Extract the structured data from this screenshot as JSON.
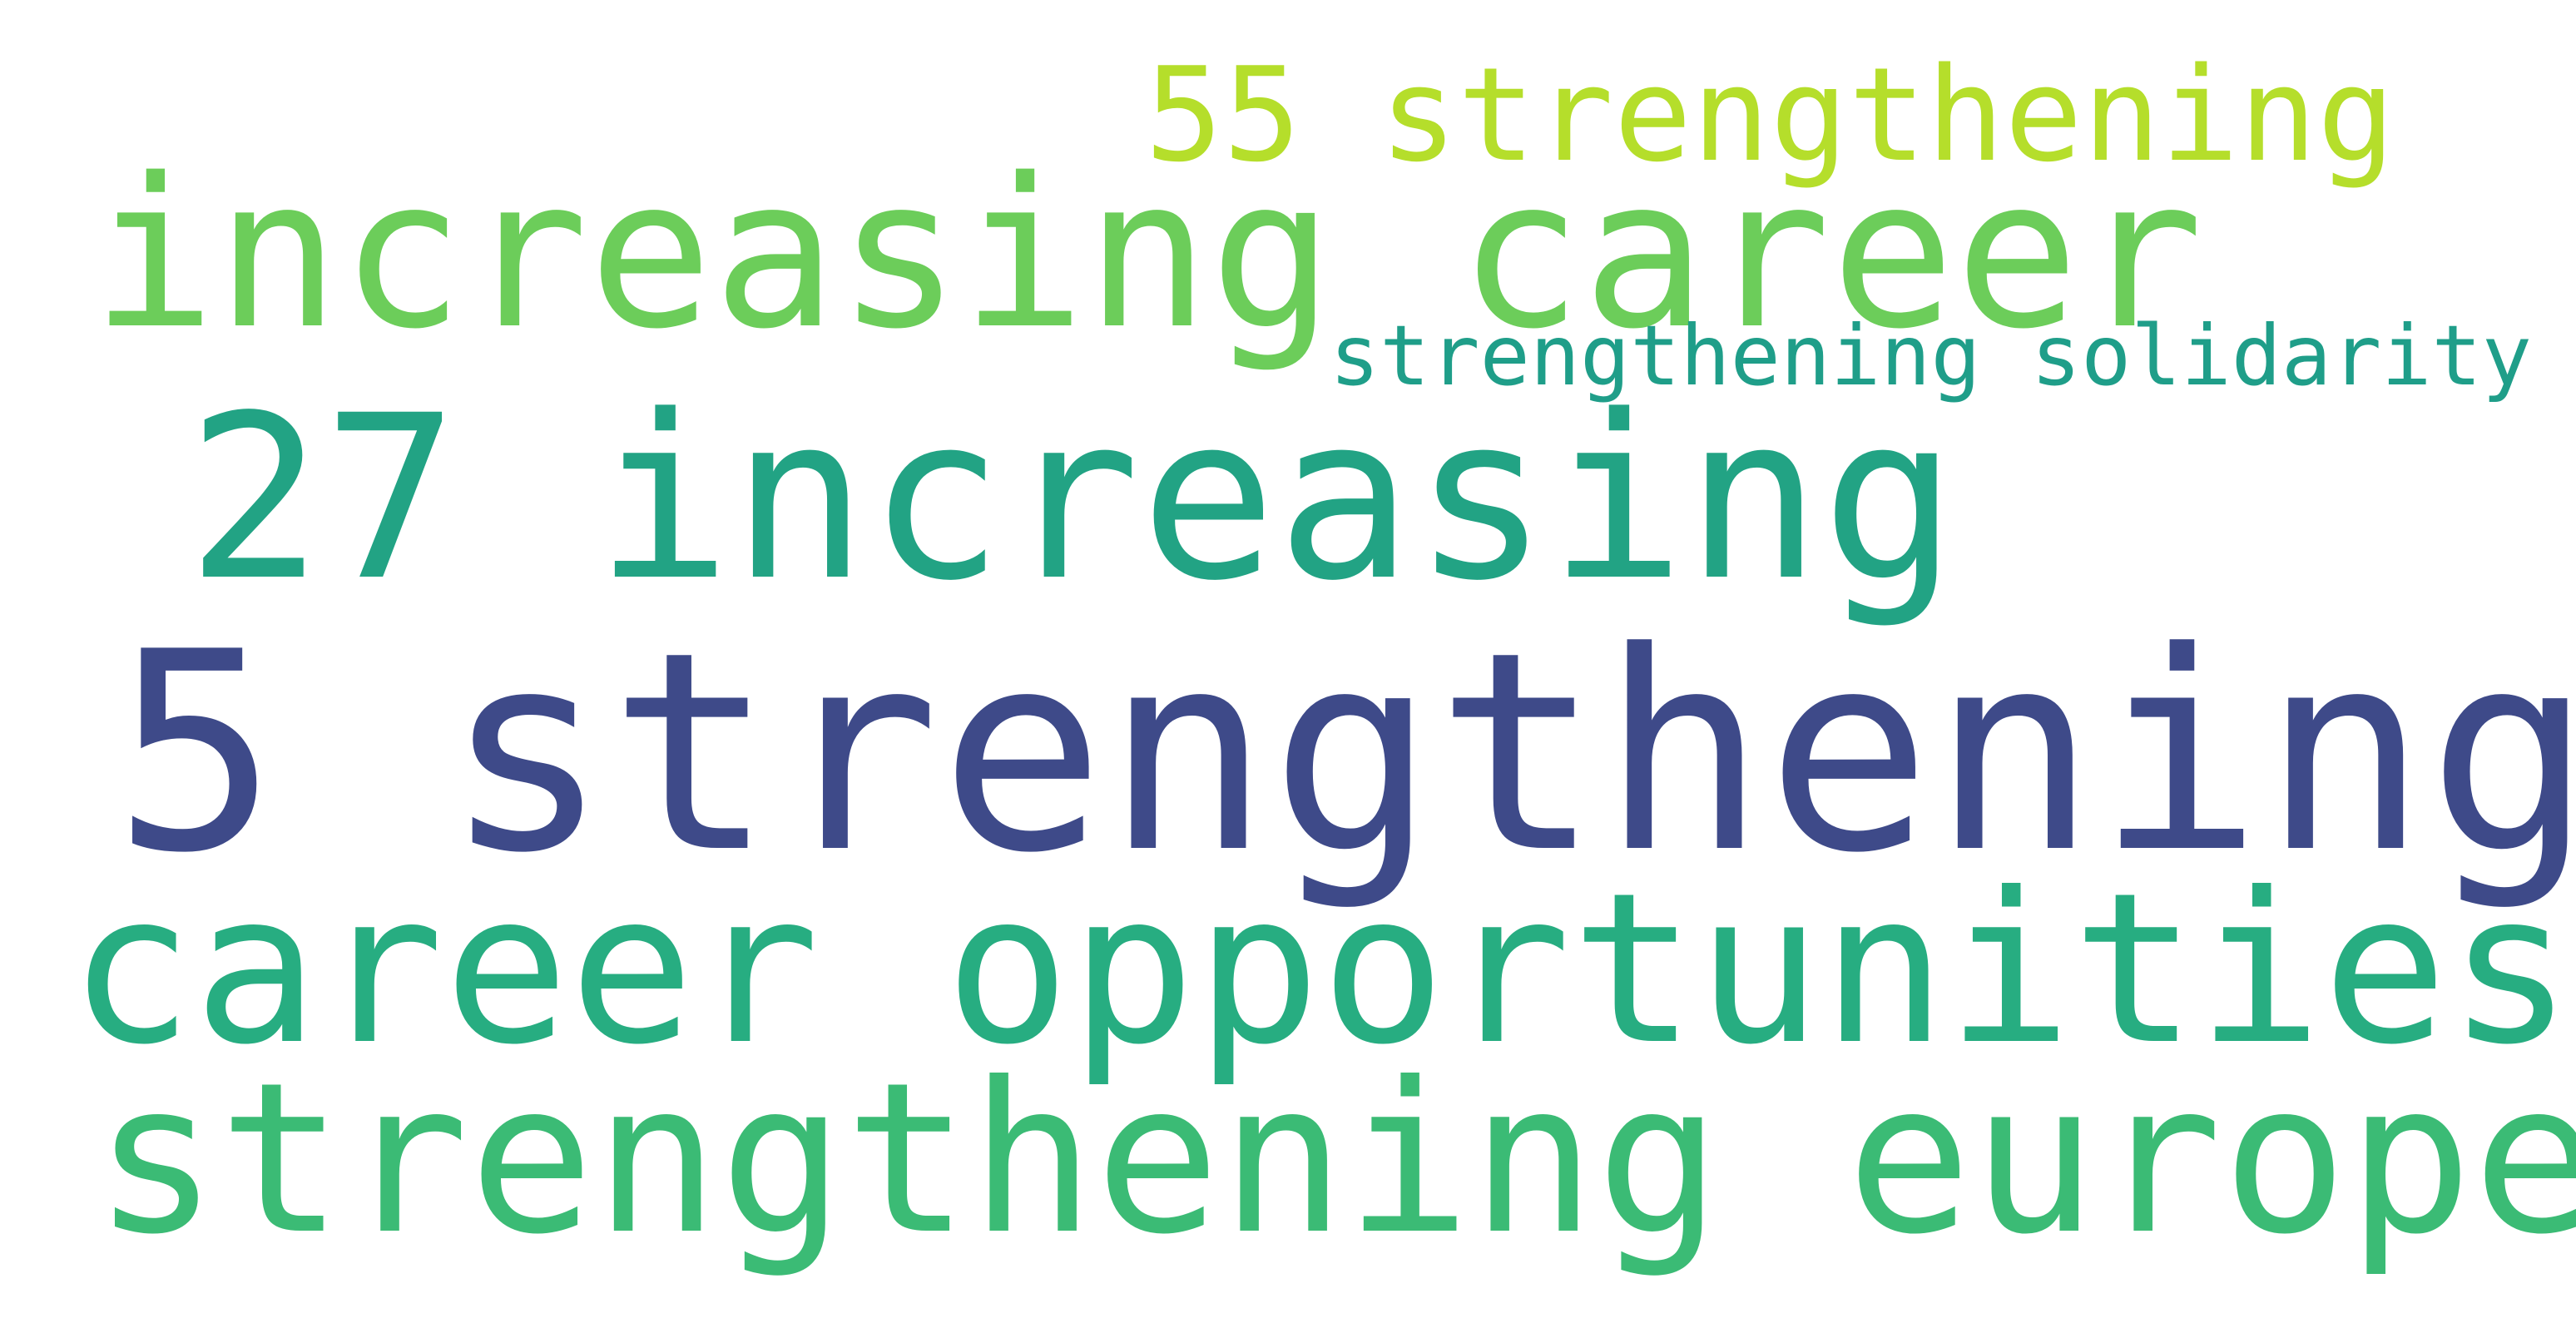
{
  "words": [
    {
      "text": "55 strengthening",
      "color": "#b5de2b"
    },
    {
      "text": "increasing career",
      "color": "#6ccd5a"
    },
    {
      "text": "strengthening solidarity",
      "color": "#1f9e89"
    },
    {
      "text": "27 increasing",
      "color": "#22a384"
    },
    {
      "text": "5 strengthening",
      "color": "#3e4a89"
    },
    {
      "text": "career opportunities",
      "color": "#27ad81"
    },
    {
      "text": "strengthening europe",
      "color": "#3bbb75"
    }
  ]
}
